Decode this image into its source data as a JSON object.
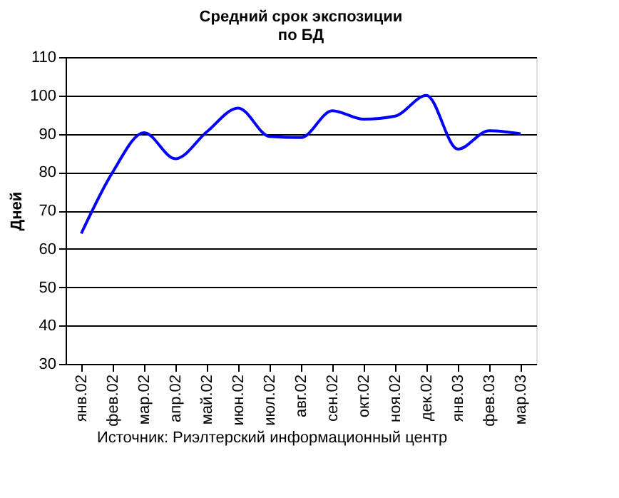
{
  "chart_data": {
    "type": "line",
    "title": [
      "Средний срок экспозиции",
      "по БД"
    ],
    "ylabel": "Дней",
    "categories": [
      "янв.02",
      "фев.02",
      "мар.02",
      "апр.02",
      "май.02",
      "июн.02",
      "июл.02",
      "авг.02",
      "сен.02",
      "окт.02",
      "ноя.02",
      "дек.02",
      "янв.03",
      "фев.03",
      "мар.03"
    ],
    "series": [
      {
        "color": "#0000ff",
        "values": [
          64,
          80,
          90.3,
          83.5,
          90.5,
          96.7,
          89.3,
          89,
          96,
          93.8,
          94.6,
          100,
          86,
          90.8,
          90
        ]
      }
    ],
    "ylim": [
      30,
      110
    ],
    "yticks": [
      30,
      40,
      50,
      60,
      70,
      80,
      90,
      100,
      110
    ],
    "grid": "y",
    "marker": "none",
    "line_style": "solid",
    "annotations": [
      "Источник: Риэлтерский информационный центр"
    ]
  }
}
